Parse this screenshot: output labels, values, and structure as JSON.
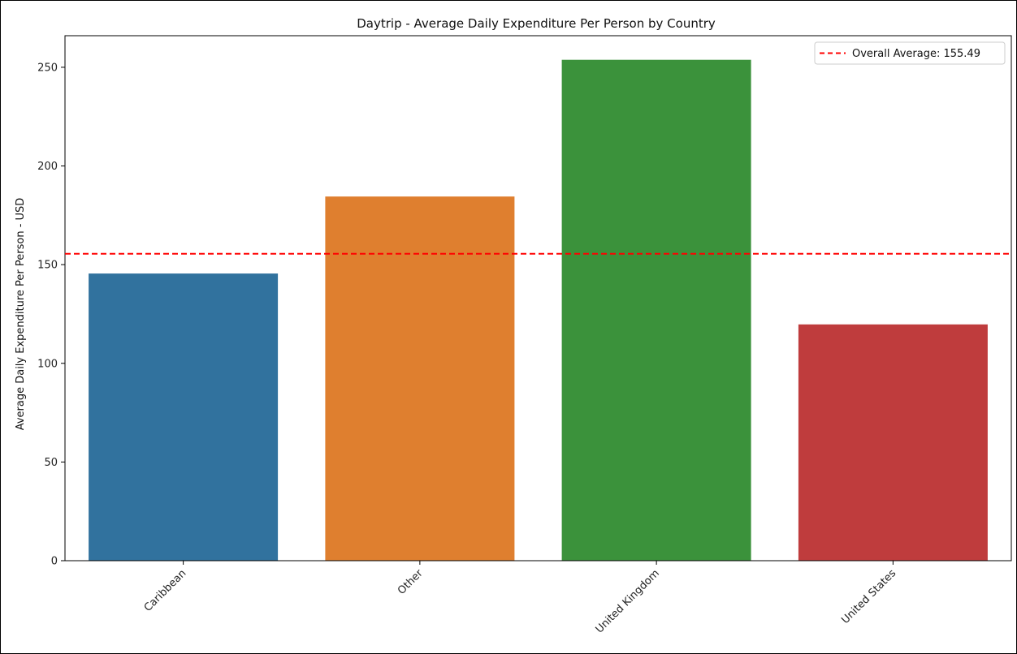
{
  "chart_data": {
    "type": "bar",
    "title": "Daytrip - Average Daily Expenditure Per Person by Country",
    "xlabel": "",
    "ylabel": "Average Daily Expenditure Per Person - USD",
    "categories": [
      "Caribbean",
      "Other",
      "United Kingdom",
      "United States"
    ],
    "values": [
      145.5,
      184.5,
      253.8,
      119.7
    ],
    "colors": [
      "#31729e",
      "#df7f2f",
      "#3b923b",
      "#bf3c3d"
    ],
    "ylim": [
      0,
      266
    ],
    "yticks": [
      0,
      50,
      100,
      150,
      200,
      250
    ],
    "grid": false,
    "reference_line": {
      "value": 155.49,
      "label": "Overall Average: 155.49",
      "color": "#ff0000",
      "style": "dashed"
    },
    "legend": {
      "placement": "top-right"
    }
  }
}
